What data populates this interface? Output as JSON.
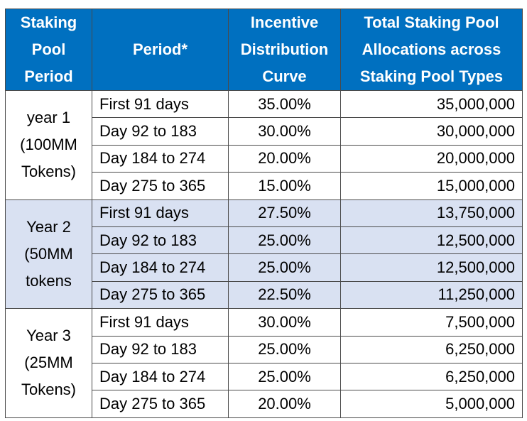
{
  "headers": {
    "pool_period": "Staking Pool Period",
    "period": "Period*",
    "incentive": "Incentive Distribution Curve",
    "total": "Total Staking Pool Allocations across Staking Pool Types"
  },
  "groups": [
    {
      "label": "year 1 (100MM Tokens)",
      "rows": [
        {
          "period": "First 91 days",
          "curve": "35.00%",
          "allocation": "35,000,000"
        },
        {
          "period": "Day 92 to 183",
          "curve": "30.00%",
          "allocation": "30,000,000"
        },
        {
          "period": "Day 184 to 274",
          "curve": "20.00%",
          "allocation": "20,000,000"
        },
        {
          "period": "Day 275 to 365",
          "curve": "15.00%",
          "allocation": "15,000,000"
        }
      ]
    },
    {
      "label": "Year 2 (50MM tokens",
      "rows": [
        {
          "period": "First 91 days",
          "curve": "27.50%",
          "allocation": "13,750,000"
        },
        {
          "period": "Day 92 to 183",
          "curve": "25.00%",
          "allocation": "12,500,000"
        },
        {
          "period": "Day 184 to 274",
          "curve": "25.00%",
          "allocation": "12,500,000"
        },
        {
          "period": "Day 275 to 365",
          "curve": "22.50%",
          "allocation": "11,250,000"
        }
      ]
    },
    {
      "label": "Year 3 (25MM Tokens)",
      "rows": [
        {
          "period": "First 91 days",
          "curve": "30.00%",
          "allocation": "7,500,000"
        },
        {
          "period": "Day 92 to 183",
          "curve": "25.00%",
          "allocation": "6,250,000"
        },
        {
          "period": "Day 184 to 274",
          "curve": "25.00%",
          "allocation": "6,250,000"
        },
        {
          "period": "Day 275 to 365",
          "curve": "20.00%",
          "allocation": "5,000,000"
        }
      ]
    }
  ],
  "colors": {
    "header_bg": "#0070c0",
    "header_text": "#ffffff",
    "shaded_bg": "#d9e1f2"
  }
}
